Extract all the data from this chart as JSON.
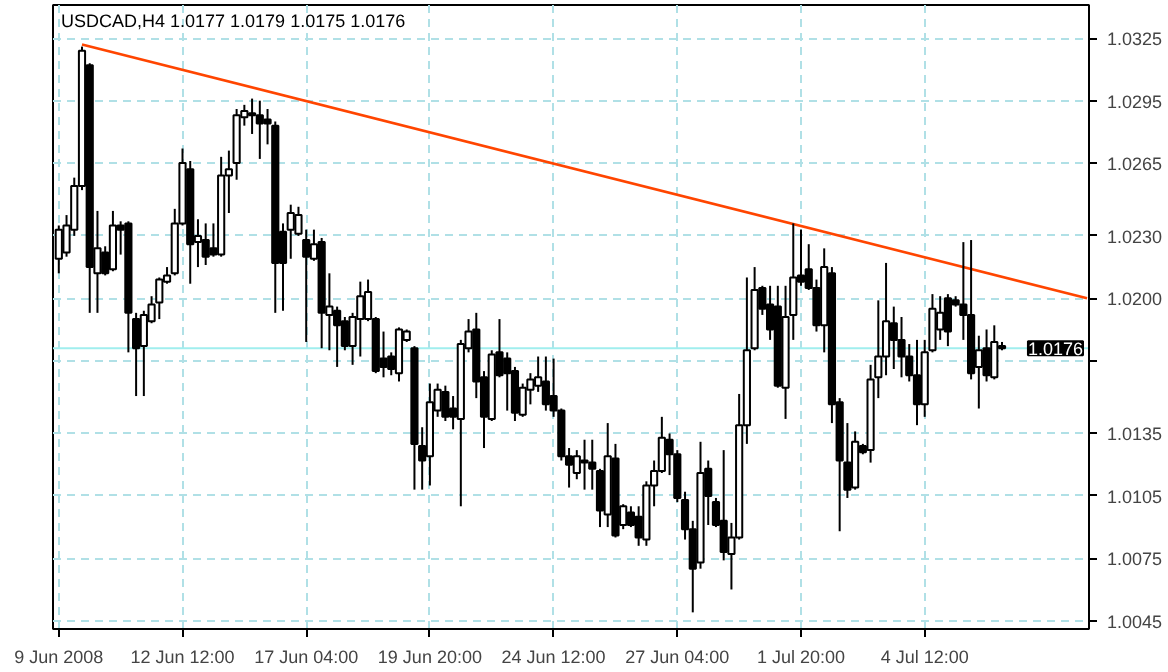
{
  "chart_data": {
    "type": "candlestick",
    "title": "USDCAD,H4  1.0177 1.0179 1.0175 1.0176",
    "categories": [
      "9 Jun 2008",
      null,
      null,
      null,
      null,
      null,
      null,
      null,
      null,
      null,
      null,
      null,
      null,
      null,
      null,
      null,
      "12 Jun 12:00",
      null,
      null,
      null,
      null,
      null,
      null,
      null,
      null,
      null,
      null,
      null,
      null,
      null,
      null,
      null,
      "17 Jun 04:00",
      null,
      null,
      null,
      null,
      null,
      null,
      null,
      null,
      null,
      null,
      null,
      null,
      null,
      null,
      null,
      "19 Jun 20:00",
      null,
      null,
      null,
      null,
      null,
      null,
      null,
      null,
      null,
      null,
      null,
      null,
      null,
      null,
      null,
      "24 Jun 12:00",
      null,
      null,
      null,
      null,
      null,
      null,
      null,
      null,
      null,
      null,
      null,
      null,
      null,
      null,
      null,
      "27 Jun 04:00",
      null,
      null,
      null,
      null,
      null,
      null,
      null,
      null,
      null,
      null,
      null,
      null,
      null,
      null,
      null,
      "1 Jul 20:00",
      null,
      null,
      null,
      null,
      null,
      null,
      null,
      null,
      null,
      null,
      null,
      null,
      null,
      null,
      null,
      "4 Jul 12:00",
      null,
      null,
      null,
      null,
      null,
      null,
      null,
      null,
      null,
      null,
      null,
      null,
      null,
      null,
      null,
      null,
      null,
      null,
      null,
      null,
      null
    ],
    "ohlc": [
      [
        1.0219,
        1.0235,
        1.0212,
        1.0233
      ],
      [
        1.0222,
        1.024,
        1.022,
        1.0235
      ],
      [
        1.0233,
        1.0258,
        1.023,
        1.0254
      ],
      [
        1.0254,
        1.0321,
        1.0252,
        1.0319
      ],
      [
        1.0312,
        1.0313,
        1.0193,
        1.0215
      ],
      [
        1.0212,
        1.0242,
        1.0193,
        1.0224
      ],
      [
        1.0222,
        1.0225,
        1.0211,
        1.0212
      ],
      [
        1.0214,
        1.0242,
        1.0213,
        1.0235
      ],
      [
        1.0235,
        1.0237,
        1.0221,
        1.0233
      ],
      [
        1.0236,
        1.0237,
        1.0174,
        1.0193
      ],
      [
        1.019,
        1.0193,
        1.0153,
        1.0176
      ],
      [
        1.0177,
        1.0194,
        1.0153,
        1.0192
      ],
      [
        1.0189,
        1.0201,
        1.0188,
        1.0197
      ],
      [
        1.0198,
        1.021,
        1.019,
        1.0209
      ],
      [
        1.0208,
        1.0215,
        1.0207,
        1.0211
      ],
      [
        1.0212,
        1.0243,
        1.0211,
        1.0236
      ],
      [
        1.0236,
        1.0272,
        1.0235,
        1.0265
      ],
      [
        1.0262,
        1.0266,
        1.0207,
        1.0226
      ],
      [
        1.0227,
        1.0238,
        1.0215,
        1.023
      ],
      [
        1.0228,
        1.0236,
        1.0216,
        1.022
      ],
      [
        1.0224,
        1.0236,
        1.022,
        1.0221
      ],
      [
        1.0221,
        1.0268,
        1.022,
        1.0259
      ],
      [
        1.0259,
        1.0271,
        1.0241,
        1.0262
      ],
      [
        1.0265,
        1.0291,
        1.0257,
        1.0288
      ],
      [
        1.0287,
        1.0293,
        1.0283,
        1.029
      ],
      [
        1.0289,
        1.0296,
        1.0279,
        1.0288
      ],
      [
        1.0288,
        1.0295,
        1.0267,
        1.0284
      ],
      [
        1.0286,
        1.0291,
        1.0274,
        1.0284
      ],
      [
        1.0283,
        1.0285,
        1.0193,
        1.0217
      ],
      [
        1.0232,
        1.0236,
        1.0194,
        1.0217
      ],
      [
        1.0233,
        1.0245,
        1.0219,
        1.0241
      ],
      [
        1.0231,
        1.0244,
        1.023,
        1.024
      ],
      [
        1.0228,
        1.0233,
        1.0179,
        1.022
      ],
      [
        1.0219,
        1.0233,
        1.0218,
        1.0226
      ],
      [
        1.0227,
        1.0229,
        1.0176,
        1.0193
      ],
      [
        1.0192,
        1.0212,
        1.0175,
        1.0196
      ],
      [
        1.0194,
        1.0196,
        1.0167,
        1.0187
      ],
      [
        1.0189,
        1.0191,
        1.0175,
        1.0177
      ],
      [
        1.0177,
        1.0193,
        1.0168,
        1.0191
      ],
      [
        1.019,
        1.0208,
        1.0172,
        1.0201
      ],
      [
        1.019,
        1.0209,
        1.0189,
        1.0203
      ],
      [
        1.019,
        1.0191,
        1.0164,
        1.0165
      ],
      [
        1.0171,
        1.0184,
        1.0162,
        1.0167
      ],
      [
        1.0172,
        1.0174,
        1.0163,
        1.0166
      ],
      [
        1.0164,
        1.0186,
        1.016,
        1.0185
      ],
      [
        1.018,
        1.0185,
        1.0179,
        1.0184
      ],
      [
        1.0176,
        1.0177,
        1.0108,
        1.013
      ],
      [
        1.0129,
        1.0138,
        1.0108,
        1.0122
      ],
      [
        1.0124,
        1.0159,
        1.011,
        1.015
      ],
      [
        1.0146,
        1.0159,
        1.0143,
        1.0156
      ],
      [
        1.0155,
        1.0158,
        1.0141,
        1.0143
      ],
      [
        1.0147,
        1.0153,
        1.0137,
        1.0143
      ],
      [
        1.0142,
        1.018,
        1.01,
        1.0178
      ],
      [
        1.0176,
        1.019,
        1.0174,
        1.0184
      ],
      [
        1.0185,
        1.0193,
        1.0152,
        1.016
      ],
      [
        1.0162,
        1.0165,
        1.0128,
        1.0143
      ],
      [
        1.0142,
        1.0175,
        1.0141,
        1.0173
      ],
      [
        1.0174,
        1.019,
        1.0162,
        1.0163
      ],
      [
        1.0171,
        1.0174,
        1.0146,
        1.0164
      ],
      [
        1.0165,
        1.0167,
        1.0141,
        1.0145
      ],
      [
        1.0144,
        1.0159,
        1.0143,
        1.0157
      ],
      [
        1.0156,
        1.0164,
        1.0149,
        1.0161
      ],
      [
        1.0158,
        1.0172,
        1.0155,
        1.0162
      ],
      [
        1.016,
        1.0172,
        1.0146,
        1.0149
      ],
      [
        1.0153,
        1.0171,
        1.0143,
        1.0146
      ],
      [
        1.0146,
        1.0147,
        1.0122,
        1.0124
      ],
      [
        1.0124,
        1.0128,
        1.0109,
        1.012
      ],
      [
        1.0116,
        1.0127,
        1.0113,
        1.0124
      ],
      [
        1.0122,
        1.0132,
        1.0108,
        1.0121
      ],
      [
        1.0121,
        1.0132,
        1.0108,
        1.0118
      ],
      [
        1.0117,
        1.0118,
        1.009,
        1.0098
      ],
      [
        1.0096,
        1.014,
        1.009,
        1.0124
      ],
      [
        1.0123,
        1.013,
        1.0085,
        1.0086
      ],
      [
        1.0091,
        1.0101,
        1.0089,
        1.01
      ],
      [
        1.0097,
        1.01,
        1.009,
        1.0091
      ],
      [
        1.0095,
        1.01,
        1.0081,
        1.0085
      ],
      [
        1.0084,
        1.0112,
        1.0081,
        1.011
      ],
      [
        1.011,
        1.0122,
        1.01,
        1.0117
      ],
      [
        1.0117,
        1.0143,
        1.0116,
        1.0133
      ],
      [
        1.0132,
        1.0135,
        1.0115,
        1.0125
      ],
      [
        1.0125,
        1.0127,
        1.0102,
        1.0104
      ],
      [
        1.0103,
        1.0107,
        1.0084,
        1.0089
      ],
      [
        1.0089,
        1.0093,
        1.0049,
        1.007
      ],
      [
        1.0073,
        1.0131,
        1.007,
        1.0116
      ],
      [
        1.0118,
        1.0122,
        1.0091,
        1.0105
      ],
      [
        1.0102,
        1.0104,
        1.009,
        1.0091
      ],
      [
        1.0093,
        1.0127,
        1.0074,
        1.0078
      ],
      [
        1.0077,
        1.0092,
        1.006,
        1.0085
      ],
      [
        1.0085,
        1.0154,
        1.0084,
        1.0139
      ],
      [
        1.0139,
        1.021,
        1.013,
        1.0175
      ],
      [
        1.0176,
        1.0215,
        1.0175,
        1.0204
      ],
      [
        1.0205,
        1.0206,
        1.0192,
        1.0195
      ],
      [
        1.0197,
        1.0206,
        1.018,
        1.0185
      ],
      [
        1.0196,
        1.0206,
        1.0157,
        1.0158
      ],
      [
        1.0157,
        1.0206,
        1.0142,
        1.0191
      ],
      [
        1.0192,
        1.0236,
        1.018,
        1.021
      ],
      [
        1.0211,
        1.0233,
        1.0206,
        1.0208
      ],
      [
        1.0214,
        1.0226,
        1.0204,
        1.0205
      ],
      [
        1.0205,
        1.0209,
        1.0184,
        1.0187
      ],
      [
        1.0187,
        1.0224,
        1.0174,
        1.0215
      ],
      [
        1.0212,
        1.0215,
        1.014,
        1.0149
      ],
      [
        1.015,
        1.0152,
        1.0088,
        1.0122
      ],
      [
        1.0121,
        1.014,
        1.0104,
        1.0108
      ],
      [
        1.0109,
        1.0136,
        1.0108,
        1.0131
      ],
      [
        1.0129,
        1.013,
        1.0125,
        1.0126
      ],
      [
        1.0127,
        1.0168,
        1.0121,
        1.0161
      ],
      [
        1.0162,
        1.0199,
        1.0152,
        1.0172
      ],
      [
        1.0172,
        1.0217,
        1.0163,
        1.0189
      ],
      [
        1.0188,
        1.0196,
        1.0166,
        1.018
      ],
      [
        1.018,
        1.0191,
        1.0162,
        1.0172
      ],
      [
        1.0172,
        1.0178,
        1.016,
        1.0163
      ],
      [
        1.0163,
        1.018,
        1.0139,
        1.0149
      ],
      [
        1.0149,
        1.018,
        1.0143,
        1.0174
      ],
      [
        1.0175,
        1.0202,
        1.0174,
        1.0195
      ],
      [
        1.0185,
        1.0201,
        1.018,
        1.0193
      ],
      [
        1.02,
        1.0202,
        1.0177,
        1.0184
      ],
      [
        1.0199,
        1.0201,
        1.0196,
        1.0197
      ],
      [
        1.0197,
        1.0227,
        1.018,
        1.0192
      ],
      [
        1.0192,
        1.0228,
        1.0161,
        1.0164
      ],
      [
        1.0167,
        1.0182,
        1.0147,
        1.0175
      ],
      [
        1.0176,
        1.0185,
        1.016,
        1.0163
      ],
      [
        1.0162,
        1.0187,
        1.0161,
        1.0179
      ],
      [
        1.0177,
        1.0179,
        1.0175,
        1.0176
      ],
      null,
      null,
      null,
      null,
      null,
      null,
      null,
      null,
      null,
      null,
      null
    ],
    "series": [
      {
        "type": "line",
        "color": "#ff4500",
        "values": [
          null,
          null,
          null,
          1.0322,
          null,
          null,
          null,
          null,
          null,
          null,
          null,
          null,
          null,
          null,
          null,
          null,
          null,
          null,
          null,
          null,
          null,
          null,
          null,
          null,
          null,
          null,
          null,
          null,
          null,
          null,
          null,
          null,
          null,
          null,
          null,
          null,
          null,
          null,
          null,
          null,
          null,
          null,
          null,
          null,
          null,
          null,
          null,
          null,
          null,
          null,
          null,
          null,
          null,
          null,
          null,
          null,
          null,
          null,
          null,
          null,
          null,
          null,
          null,
          null,
          null,
          null,
          null,
          null,
          null,
          null,
          null,
          null,
          null,
          null,
          null,
          null,
          null,
          null,
          null,
          null,
          null,
          null,
          null,
          null,
          null,
          null,
          null,
          null,
          null,
          null,
          null,
          null,
          null,
          null,
          null,
          null,
          null,
          null,
          null,
          null,
          null,
          null,
          null,
          null,
          null,
          null,
          null,
          null,
          null,
          null,
          null,
          null,
          null,
          null,
          null,
          null,
          null,
          null,
          null,
          null,
          null,
          null,
          null,
          null,
          null,
          null,
          null,
          null,
          null,
          null,
          null,
          null,
          null,
          1.02
        ]
      }
    ],
    "ylim": [
      1.0041,
      1.0341
    ],
    "yticks": [
      1.0325,
      1.0295,
      1.0265,
      {
        "value": 1.023,
        "label": "1.0230"
      },
      {
        "value": 1.02,
        "label": "1.0200"
      },
      {
        "value": 1.017,
        "label": null
      },
      1.0135,
      1.0105,
      1.0075,
      1.0045
    ],
    "ref_lines": [
      {
        "axis": "y",
        "value": 1.0176,
        "label": "1.0176",
        "color": "#a0eeee"
      }
    ],
    "grid": true
  }
}
